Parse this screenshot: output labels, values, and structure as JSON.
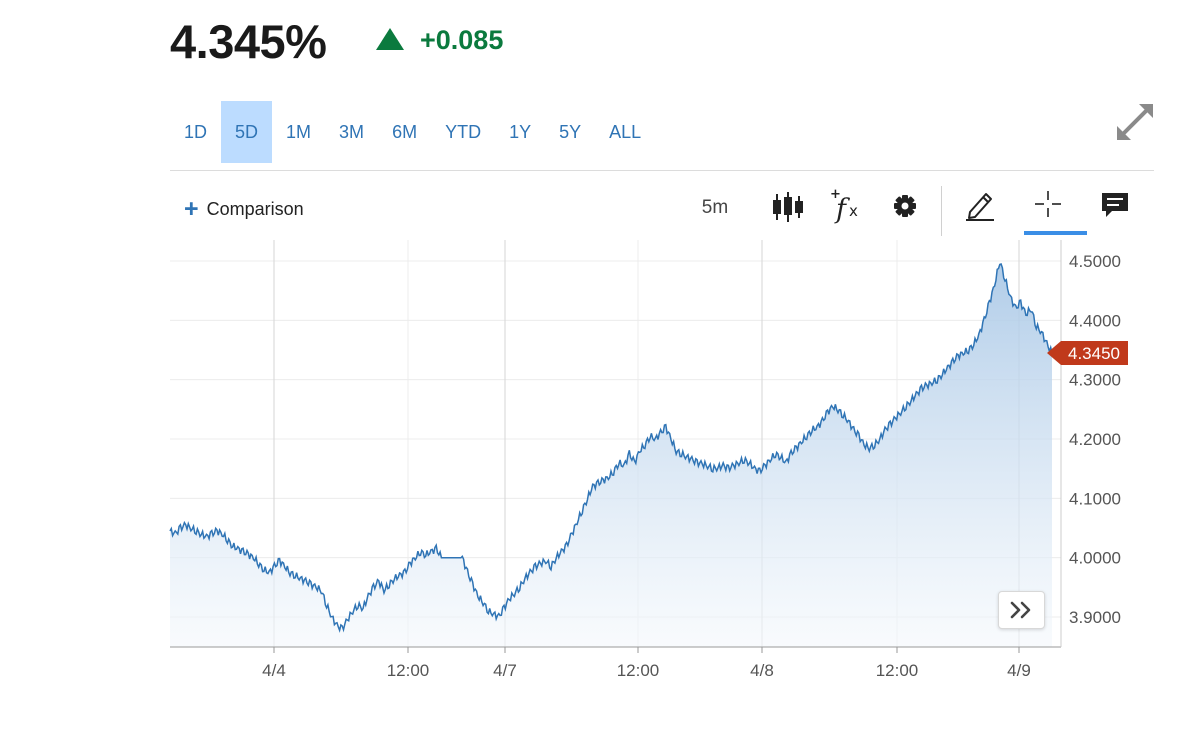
{
  "quote": {
    "price": "4.345%",
    "change": "+0.085",
    "direction_icon": "triangle-up-icon",
    "up_color": "#0b7a3e"
  },
  "ranges": [
    {
      "label": "1D",
      "active": false
    },
    {
      "label": "5D",
      "active": true
    },
    {
      "label": "1M",
      "active": false
    },
    {
      "label": "3M",
      "active": false
    },
    {
      "label": "6M",
      "active": false
    },
    {
      "label": "YTD",
      "active": false
    },
    {
      "label": "1Y",
      "active": false
    },
    {
      "label": "5Y",
      "active": false
    },
    {
      "label": "ALL",
      "active": false
    }
  ],
  "toolbar": {
    "comparison_label": "Comparison",
    "interval_label": "5m",
    "icons": [
      "candlestick-icon",
      "function-icon",
      "gear-icon",
      "pencil-icon",
      "crosshair-icon",
      "comment-icon"
    ],
    "active_tool": "crosshair-icon"
  },
  "chart_data": {
    "type": "area",
    "title": "",
    "xlabel": "",
    "ylabel": "",
    "ylim": [
      3.85,
      4.52
    ],
    "y_ticks": [
      "4.5000",
      "4.4000",
      "4.3000",
      "4.2000",
      "4.1000",
      "4.0000",
      "3.9000"
    ],
    "x_ticks": [
      "4/4",
      "12:00",
      "4/7",
      "12:00",
      "4/8",
      "12:00",
      "4/9"
    ],
    "current_value_label": "4.3450",
    "current_value": 4.345,
    "line_color": "#2f74b5",
    "marker_color": "#c0391b",
    "grid": true,
    "series": [
      {
        "values": [
          4.045,
          4.04,
          4.05,
          4.055,
          4.05,
          4.045,
          4.04,
          4.035,
          4.04,
          4.045,
          4.04,
          4.03,
          4.02,
          4.015,
          4.01,
          4.005,
          4.0,
          3.99,
          3.98,
          3.975,
          3.985,
          3.995,
          3.985,
          3.975,
          3.97,
          3.965,
          3.96,
          3.955,
          3.95,
          3.945,
          3.92,
          3.9,
          3.885,
          3.88,
          3.895,
          3.91,
          3.92,
          3.915,
          3.935,
          3.95,
          3.96,
          3.945,
          3.955,
          3.965,
          3.97,
          3.975,
          3.99,
          4.0,
          4.01,
          4.005,
          4.01,
          4.015,
          4.0,
          4.0,
          4.0,
          4.0,
          4.0,
          3.975,
          3.955,
          3.935,
          3.925,
          3.91,
          3.905,
          3.9,
          3.915,
          3.93,
          3.94,
          3.95,
          3.965,
          3.975,
          3.985,
          3.99,
          3.995,
          3.985,
          4.0,
          4.01,
          4.02,
          4.04,
          4.06,
          4.08,
          4.1,
          4.12,
          4.125,
          4.13,
          4.135,
          4.145,
          4.16,
          4.155,
          4.175,
          4.16,
          4.18,
          4.19,
          4.205,
          4.2,
          4.21,
          4.22,
          4.2,
          4.18,
          4.175,
          4.17,
          4.165,
          4.16,
          4.158,
          4.155,
          4.15,
          4.152,
          4.155,
          4.15,
          4.155,
          4.16,
          4.165,
          4.16,
          4.15,
          4.145,
          4.155,
          4.165,
          4.175,
          4.17,
          4.16,
          4.175,
          4.185,
          4.195,
          4.205,
          4.215,
          4.22,
          4.23,
          4.245,
          4.255,
          4.25,
          4.24,
          4.23,
          4.215,
          4.205,
          4.19,
          4.185,
          4.19,
          4.2,
          4.215,
          4.225,
          4.235,
          4.245,
          4.255,
          4.265,
          4.275,
          4.285,
          4.29,
          4.295,
          4.3,
          4.31,
          4.32,
          4.33,
          4.34,
          4.345,
          4.35,
          4.36,
          4.375,
          4.4,
          4.43,
          4.46,
          4.5,
          4.47,
          4.44,
          4.42,
          4.43,
          4.41,
          4.42,
          4.39,
          4.38,
          4.36,
          4.345
        ]
      }
    ]
  }
}
